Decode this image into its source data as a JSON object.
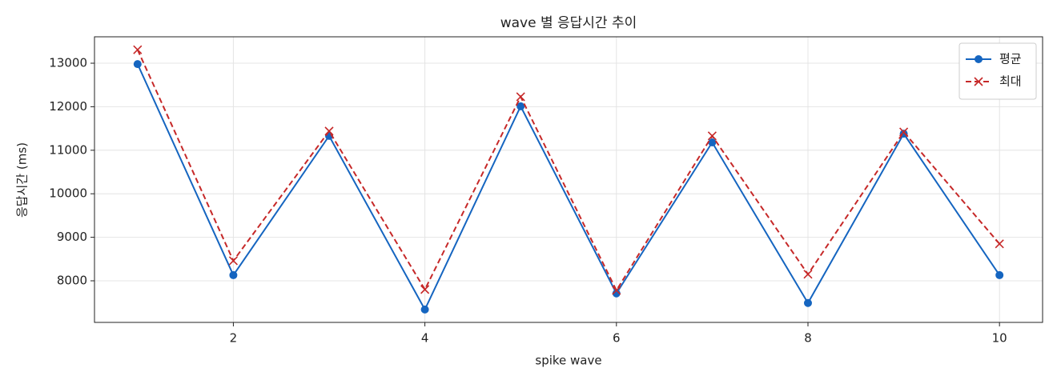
{
  "chart_data": {
    "type": "line",
    "title": "wave 별 응답시간 추이",
    "x_label": "spike wave",
    "y_label": "응답시간 (ms)",
    "x": [
      1,
      2,
      3,
      4,
      5,
      6,
      7,
      8,
      9,
      10
    ],
    "series": [
      {
        "name": "평균",
        "color": "#1565c0",
        "marker": "o",
        "dash": "solid",
        "values": [
          12980,
          8130,
          11330,
          7340,
          12010,
          7710,
          11180,
          7490,
          11380,
          8130
        ]
      },
      {
        "name": "최대",
        "color": "#c62828",
        "marker": "x",
        "dash": "dashed",
        "values": [
          13310,
          8460,
          11440,
          7800,
          12230,
          7780,
          11330,
          8150,
          11420,
          8850
        ]
      }
    ],
    "xlim": [
      0.55,
      10.45
    ],
    "ylim": [
      7044,
      13607
    ],
    "xticks": [
      2,
      4,
      6,
      8,
      10
    ],
    "yticks": [
      8000,
      9000,
      10000,
      11000,
      12000,
      13000
    ],
    "grid": true,
    "legend": "upper right"
  }
}
